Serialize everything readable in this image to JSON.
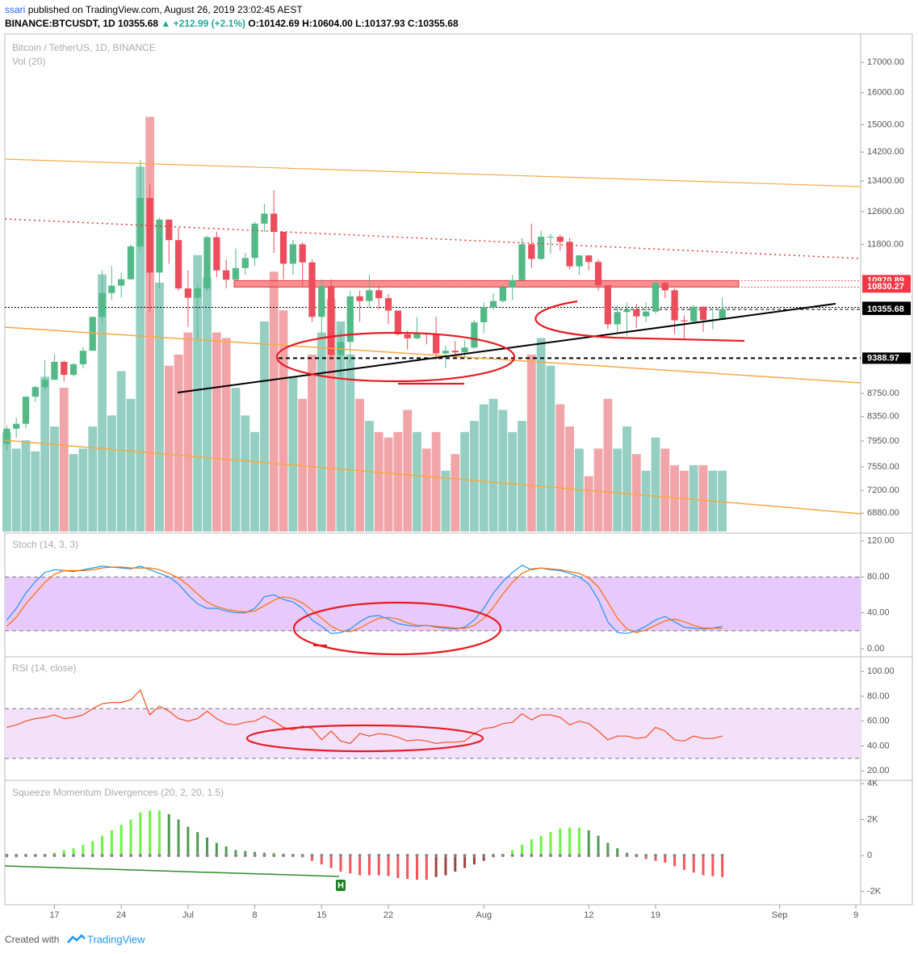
{
  "header": {
    "author": "ssari",
    "published": "published on TradingView.com, August 26, 2019 23:02:45 AEST",
    "symbol": "BINANCE:BTCUSDT, 1D",
    "last": 10355.68,
    "change": "▲ +212.99 (+2.1%)",
    "open": "O:10142.69",
    "high": "H:10604.00",
    "low": "L:10137.93",
    "close": "C:10355.68"
  },
  "footer": {
    "created": "Created with",
    "brand": "TradingView"
  },
  "chart_data": [
    {
      "type": "candlestick",
      "title": "Bitcoin / TetherUS, 1D, BINANCE",
      "volume_label": "Vol (20)",
      "log_scale": true,
      "grid": false,
      "xlim": [
        -0.2,
        89.5
      ],
      "xticks": [
        {
          "value": 5,
          "label": "17"
        },
        {
          "value": 12,
          "label": "24"
        },
        {
          "value": 19,
          "label": "Jul"
        },
        {
          "value": 26,
          "label": "8"
        },
        {
          "value": 33,
          "label": "15"
        },
        {
          "value": 40,
          "label": "22"
        },
        {
          "value": 50,
          "label": "Aug"
        },
        {
          "value": 61,
          "label": "12"
        },
        {
          "value": 68,
          "label": "19"
        },
        {
          "value": 81,
          "label": "Sep"
        },
        {
          "value": 89,
          "label": "9"
        }
      ],
      "ylim": [
        6630,
        18000
      ],
      "yticks": [
        {
          "value": 6880,
          "label": "6880.00"
        },
        {
          "value": 7200,
          "label": "7200.00"
        },
        {
          "value": 7550,
          "label": "7550.00"
        },
        {
          "value": 7950,
          "label": "7950.00"
        },
        {
          "value": 8350,
          "label": "8350.00"
        },
        {
          "value": 8750,
          "label": "8750.00"
        },
        {
          "value": 11800,
          "label": "11800.00"
        },
        {
          "value": 12600,
          "label": "12600.00"
        },
        {
          "value": 13400,
          "label": "13400.00"
        },
        {
          "value": 14200,
          "label": "14200.00"
        },
        {
          "value": 15000,
          "label": "15000.00"
        },
        {
          "value": 16000,
          "label": "16000.00"
        },
        {
          "value": 17000,
          "label": "17000.00"
        }
      ],
      "price_levels": [
        10970.89,
        10830.27,
        10397.71,
        10355.68,
        9388.97
      ],
      "level_colors": [
        "#f23645",
        "#f23645",
        "#000000",
        "#000000",
        "#000000"
      ],
      "zone": {
        "from": 10830.27,
        "to": 10970.89,
        "color": "#f77c80"
      },
      "up_color": "#53b987",
      "down_color": "#eb4d5c",
      "volume_up_color": "#94cfc2",
      "volume_down_color": "#f2a5a9",
      "volume_ylim": [
        0,
        180
      ],
      "open": [
        7905,
        8150,
        8230,
        8690,
        8860,
        8990,
        9320,
        9080,
        9275,
        9530,
        10200,
        10700,
        10860,
        11000,
        11750,
        12950,
        11150,
        12400,
        11900,
        10800,
        10600,
        10800,
        11970,
        11200,
        10990,
        11250,
        11480,
        12300,
        12550,
        12100,
        11350,
        11800,
        11380,
        10200,
        10850,
        9450,
        9700,
        10630,
        10530,
        10760,
        10590,
        10330,
        9850,
        9770,
        9880,
        9850,
        9480,
        9530,
        9500,
        9590,
        10090,
        10400,
        10530,
        10820,
        10980,
        11800,
        11460,
        11980,
        11980,
        11860,
        11290,
        11540,
        11390,
        10870,
        10050,
        10300,
        10350,
        10210,
        10310,
        10920,
        10760,
        10130,
        10110,
        10410,
        10140,
        10142.69
      ],
      "high": [
        8200,
        8330,
        8700,
        8880,
        9350,
        9470,
        9340,
        9300,
        9600,
        10200,
        11200,
        11300,
        11150,
        11800,
        13970,
        13300,
        12450,
        12400,
        12200,
        11200,
        10900,
        12000,
        12100,
        11450,
        11700,
        11600,
        12350,
        12800,
        13150,
        12100,
        11900,
        11850,
        11450,
        11000,
        11000,
        9950,
        10750,
        10750,
        11100,
        10850,
        10680,
        10330,
        9920,
        10200,
        9890,
        10200,
        9630,
        9720,
        9740,
        10130,
        10500,
        10700,
        10900,
        11100,
        11950,
        12300,
        12130,
        12050,
        12030,
        11950,
        11550,
        11540,
        11450,
        10880,
        10450,
        10500,
        10470,
        10500,
        10950,
        10950,
        10800,
        10230,
        10450,
        10420,
        10330,
        10604
      ],
      "low": [
        7800,
        8000,
        8160,
        8600,
        8800,
        8990,
        8960,
        9050,
        9200,
        9530,
        10080,
        10550,
        10600,
        10990,
        11650,
        10300,
        10800,
        11350,
        10750,
        10000,
        9750,
        10750,
        11050,
        10800,
        10990,
        11100,
        11300,
        12100,
        11600,
        11000,
        11100,
        10850,
        10100,
        9850,
        9350,
        9050,
        9300,
        10100,
        10400,
        10350,
        10050,
        9820,
        9550,
        9750,
        9650,
        9350,
        9200,
        9400,
        9380,
        9570,
        9870,
        10350,
        10500,
        10550,
        10950,
        11250,
        11430,
        11580,
        11650,
        11220,
        11100,
        11200,
        10750,
        9960,
        9880,
        9820,
        9980,
        10100,
        10260,
        10590,
        9850,
        9750,
        10050,
        9900,
        9950,
        10137.93
      ],
      "close": [
        8150,
        8230,
        8690,
        8860,
        8990,
        9320,
        9080,
        9275,
        9530,
        10200,
        10700,
        10860,
        11000,
        11750,
        12950,
        11150,
        12400,
        11900,
        10800,
        10600,
        10800,
        11970,
        11200,
        10990,
        11250,
        11480,
        12300,
        12550,
        12100,
        11350,
        11800,
        11380,
        10200,
        10850,
        9450,
        9700,
        10630,
        10530,
        10760,
        10590,
        10330,
        9850,
        9770,
        9880,
        9850,
        9480,
        9530,
        9500,
        9590,
        10090,
        10400,
        10530,
        10820,
        10980,
        11800,
        11460,
        11980,
        11980,
        11860,
        11290,
        11540,
        11390,
        10870,
        10050,
        10300,
        10350,
        10210,
        10310,
        10920,
        10760,
        10130,
        10110,
        10410,
        10140,
        10140,
        10355.68
      ],
      "volume": [
        36,
        30,
        33,
        29,
        56,
        38,
        52,
        28,
        30,
        38,
        93,
        42,
        58,
        48,
        132,
        150,
        90,
        60,
        64,
        72,
        100,
        92,
        72,
        70,
        52,
        42,
        36,
        76,
        94,
        80,
        56,
        48,
        64,
        72,
        84,
        76,
        64,
        48,
        40,
        36,
        34,
        36,
        44,
        36,
        30,
        36,
        22,
        28,
        36,
        40,
        46,
        48,
        44,
        36,
        40,
        64,
        70,
        60,
        46,
        38,
        30,
        20,
        30,
        48,
        30,
        38,
        28,
        22,
        34,
        30,
        24,
        22,
        24,
        24,
        22,
        22
      ]
    },
    {
      "type": "line",
      "title": "Stoch (14, 3, 3)",
      "ylim": [
        -8,
        127
      ],
      "yticks": [
        {
          "value": 0,
          "label": "0.00"
        },
        {
          "value": 40,
          "label": "40.00"
        },
        {
          "value": 80,
          "label": "80.00"
        },
        {
          "value": 120,
          "label": "120.00"
        }
      ],
      "band": [
        20,
        80
      ],
      "band_color": "#e8c9fb",
      "series": [
        {
          "color": "#2196f3",
          "values": [
            32,
            45,
            62,
            75,
            85,
            88,
            87,
            86,
            88,
            90,
            92,
            91,
            90,
            89,
            92,
            88,
            84,
            80,
            72,
            60,
            50,
            45,
            45,
            42,
            40,
            40,
            45,
            58,
            60,
            55,
            52,
            45,
            32,
            25,
            17,
            18,
            22,
            30,
            36,
            37,
            33,
            28,
            26,
            25,
            26,
            24,
            23,
            22,
            24,
            32,
            45,
            62,
            75,
            85,
            93,
            88,
            90,
            88,
            87,
            84,
            80,
            72,
            55,
            30,
            18,
            17,
            20,
            25,
            32,
            36,
            30,
            24,
            23,
            22,
            23,
            25
          ]
        },
        {
          "color": "#ff6d00",
          "values": [
            25,
            35,
            50,
            62,
            74,
            83,
            87,
            87,
            87,
            88,
            90,
            91,
            91,
            90,
            90,
            90,
            88,
            84,
            79,
            71,
            61,
            52,
            47,
            44,
            42,
            41,
            42,
            48,
            54,
            58,
            56,
            51,
            43,
            34,
            25,
            20,
            19,
            23,
            29,
            34,
            35,
            33,
            29,
            26,
            26,
            25,
            24,
            23,
            23,
            26,
            34,
            46,
            61,
            74,
            84,
            89,
            90,
            89,
            88,
            86,
            84,
            79,
            69,
            52,
            34,
            22,
            18,
            21,
            26,
            31,
            33,
            30,
            26,
            23,
            23,
            23
          ]
        }
      ]
    },
    {
      "type": "line",
      "title": "RSI (14, close)",
      "ylim": [
        13,
        110.5
      ],
      "yticks": [
        {
          "value": 20,
          "label": "20.00"
        },
        {
          "value": 40,
          "label": "40.00"
        },
        {
          "value": 60,
          "label": "60.00"
        },
        {
          "value": 80,
          "label": "80.00"
        },
        {
          "value": 100,
          "label": "100.00"
        }
      ],
      "band": [
        30,
        70
      ],
      "band_color": "#f3e0fb",
      "series": [
        {
          "color": "#f4511e",
          "values": [
            55,
            57,
            60,
            62,
            63,
            65,
            62,
            63,
            65,
            70,
            74,
            75,
            75,
            77,
            85,
            65,
            72,
            68,
            62,
            60,
            62,
            68,
            62,
            58,
            57,
            59,
            60,
            64,
            60,
            55,
            53,
            56,
            54,
            45,
            52,
            44,
            42,
            50,
            48,
            50,
            49,
            47,
            44,
            45,
            44,
            42,
            43,
            43,
            44,
            50,
            54,
            55,
            58,
            59,
            66,
            61,
            65,
            65,
            63,
            57,
            60,
            58,
            52,
            45,
            48,
            48,
            46,
            47,
            55,
            52,
            45,
            44,
            48,
            46,
            46,
            48
          ]
        }
      ]
    },
    {
      "type": "bar",
      "title": "Squeeze Momentum Divergences (20, 2, 20, 1.5)",
      "ylim": [
        -2740,
        4090
      ],
      "yticks": [
        {
          "value": -2000,
          "label": "-2K"
        },
        0,
        {
          "value": 2000,
          "label": "2K"
        },
        {
          "value": 4000,
          "label": "4K"
        }
      ],
      "bar_colors": {
        "pos_rising": "#6cf542",
        "pos_falling": "#4f9a52",
        "neg_falling": "#f4555a",
        "neg_rising": "#9c4343"
      },
      "values": [
        -100,
        -100,
        -50,
        0,
        50,
        150,
        300,
        400,
        600,
        800,
        1100,
        1400,
        1700,
        2000,
        2400,
        2500,
        2500,
        2300,
        2000,
        1600,
        1300,
        1000,
        700,
        500,
        300,
        250,
        200,
        150,
        150,
        100,
        50,
        -100,
        -300,
        -500,
        -700,
        -900,
        -1000,
        -1100,
        -1100,
        -1100,
        -1150,
        -1250,
        -1300,
        -1350,
        -1350,
        -1200,
        -1100,
        -900,
        -700,
        -500,
        -300,
        -100,
        100,
        300,
        600,
        900,
        1100,
        1300,
        1500,
        1550,
        1550,
        1400,
        1100,
        700,
        400,
        150,
        -100,
        -200,
        -300,
        -400,
        -600,
        -800,
        -950,
        -1100,
        -1150,
        -1200
      ],
      "signal": {
        "label": "H",
        "index": 35,
        "color": "#1e7e22"
      }
    }
  ]
}
